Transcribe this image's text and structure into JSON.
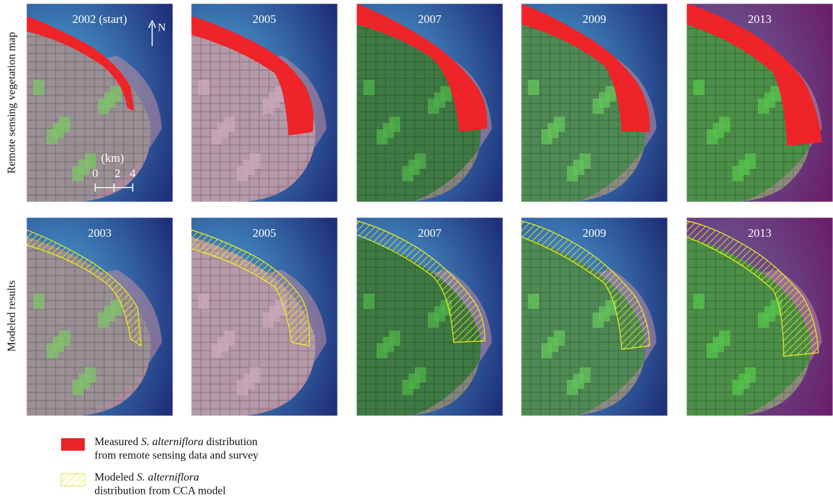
{
  "row_labels": [
    "Remote sensing vegetation map",
    "Modeled results"
  ],
  "rows": [
    {
      "panels": [
        "2002 (start)",
        "2005",
        "2007",
        "2009",
        "2013"
      ]
    },
    {
      "panels": [
        "2003",
        "2005",
        "2007",
        "2009",
        "2013"
      ]
    }
  ],
  "north": "N",
  "scale": {
    "unit": "(km)",
    "ticks": [
      0,
      2,
      4
    ]
  },
  "legend": [
    {
      "parts": [
        "Measured ",
        "S. alterniflora",
        " distribution"
      ],
      "line2": "from remote sensing data and survey"
    },
    {
      "parts": [
        "Modeled ",
        "S. alterniflora"
      ],
      "line2": "distribution from CCA model"
    }
  ]
}
